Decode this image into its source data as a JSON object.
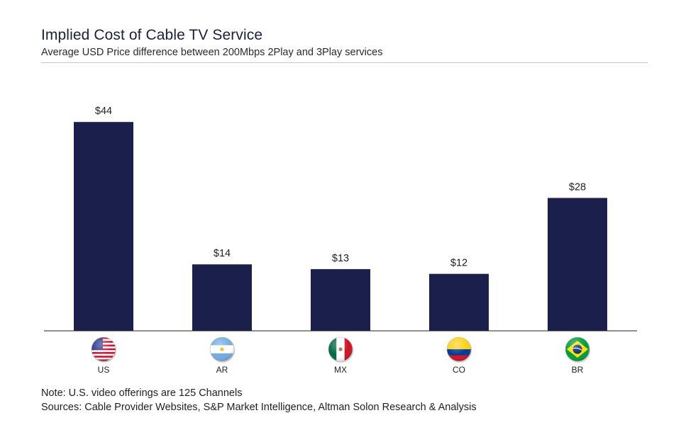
{
  "header": {
    "title": "Implied Cost of Cable TV Service",
    "subtitle": "Average USD Price difference between 200Mbps 2Play and 3Play services"
  },
  "chart_data": {
    "type": "bar",
    "title": "Implied Cost of Cable TV Service",
    "subtitle": "Average USD Price difference between 200Mbps 2Play and 3Play services",
    "categories": [
      "US",
      "AR",
      "MX",
      "CO",
      "BR"
    ],
    "values": [
      44,
      14,
      13,
      12,
      28
    ],
    "data_labels": [
      "$44",
      "$14",
      "$13",
      "$12",
      "$28"
    ],
    "category_icons": [
      "us-flag-icon",
      "ar-flag-icon",
      "mx-flag-icon",
      "co-flag-icon",
      "br-flag-icon"
    ],
    "xlabel": "",
    "ylabel": "",
    "ylim": [
      0,
      50
    ],
    "grid": false,
    "legend": "none",
    "bar_color": "#1b1f4b"
  },
  "footer": {
    "note": "Note: U.S. video offerings are 125 Channels",
    "sources": "Sources: Cable Provider Websites, S&P Market Intelligence, Altman Solon Research & Analysis"
  }
}
